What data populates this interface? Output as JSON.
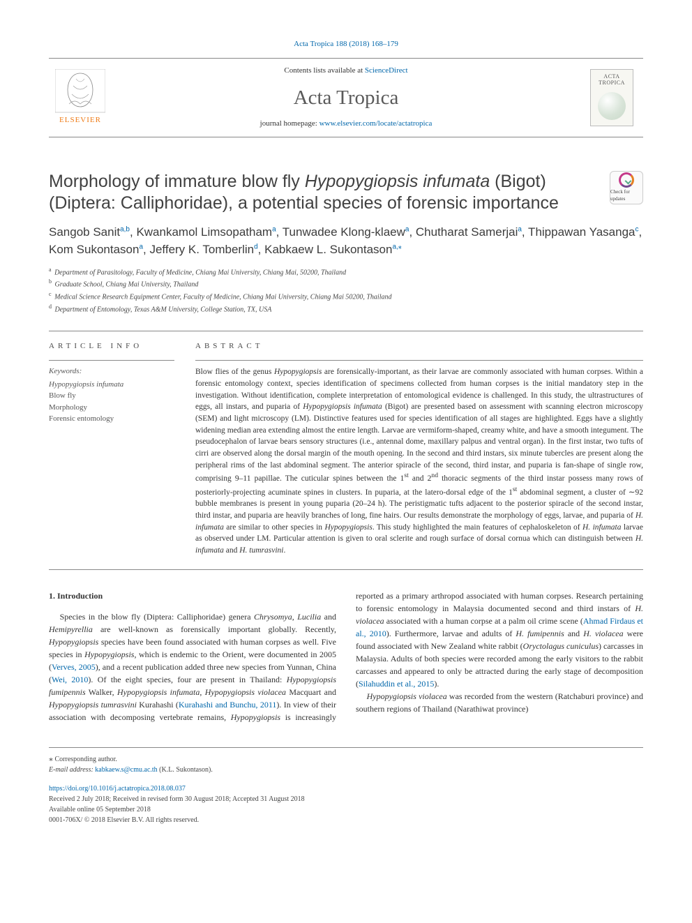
{
  "topbar": {
    "journal_ref": "Acta Tropica 188 (2018) 168–179"
  },
  "masthead": {
    "contents_prefix": "Contents lists available at ",
    "contents_link": "ScienceDirect",
    "journal_name": "Acta Tropica",
    "homepage_prefix": "journal homepage: ",
    "homepage_link": "www.elsevier.com/locate/actatropica",
    "cover_title": "ACTA TROPICA"
  },
  "title": {
    "pre": "Morphology of immature blow fly ",
    "italic": "Hypopygiopsis infumata",
    "post": " (Bigot) (Diptera: Calliphoridae), a potential species of forensic importance"
  },
  "check_updates_label": "Check for updates",
  "authors": [
    {
      "name": "Sangob Sanit",
      "aff": "a,b"
    },
    {
      "name": "Kwankamol Limsopatham",
      "aff": "a"
    },
    {
      "name": "Tunwadee Klong-klaew",
      "aff": "a"
    },
    {
      "name": "Chutharat Samerjai",
      "aff": "a"
    },
    {
      "name": "Thippawan Yasanga",
      "aff": "c"
    },
    {
      "name": "Kom Sukontason",
      "aff": "a"
    },
    {
      "name": "Jeffery K. Tomberlin",
      "aff": "d"
    },
    {
      "name": "Kabkaew L. Sukontason",
      "aff": "a,",
      "corr": true
    }
  ],
  "affiliations": [
    {
      "key": "a",
      "text": "Department of Parasitology, Faculty of Medicine, Chiang Mai University, Chiang Mai, 50200, Thailand"
    },
    {
      "key": "b",
      "text": "Graduate School, Chiang Mai University, Thailand"
    },
    {
      "key": "c",
      "text": "Medical Science Research Equipment Center, Faculty of Medicine, Chiang Mai University, Chiang Mai 50200, Thailand"
    },
    {
      "key": "d",
      "text": "Department of Entomology, Texas A&M University, College Station, TX, USA"
    }
  ],
  "article_info_label": "ARTICLE INFO",
  "abstract_label": "ABSTRACT",
  "keywords_heading": "Keywords:",
  "keywords": [
    "Hypopygiopsis infumata",
    "Blow fly",
    "Morphology",
    "Forensic entomology"
  ],
  "abstract_html": "Blow flies of the genus <span class=\"italic\">Hypopygiopsis</span> are forensically-important, as their larvae are commonly associated with human corpses. Within a forensic entomology context, species identification of specimens collected from human corpses is the initial mandatory step in the investigation. Without identification, complete interpretation of entomological evidence is challenged. In this study, the ultrastructures of eggs, all instars, and puparia of <span class=\"italic\">Hypopygiopsis infumata</span> (Bigot) are presented based on assessment with scanning electron microscopy (SEM) and light microscopy (LM). Distinctive features used for species identification of all stages are highlighted. Eggs have a slightly widening median area extending almost the entire length. Larvae are vermiform-shaped, creamy white, and have a smooth integument. The pseudocephalon of larvae bears sensory structures (i.e., antennal dome, maxillary palpus and ventral organ). In the first instar, two tufts of cirri are observed along the dorsal margin of the mouth opening. In the second and third instars, six minute tubercles are present along the peripheral rims of the last abdominal segment. The anterior spiracle of the second, third instar, and puparia is fan-shape of single row, comprising 9–11 papillae. The cuticular spines between the 1<sup>st</sup> and 2<sup>nd</sup> thoracic segments of the third instar possess many rows of posteriorly-projecting acuminate spines in clusters. In puparia, at the latero-dorsal edge of the 1<sup>st</sup> abdominal segment, a cluster of ∼92 bubble membranes is present in young puparia (20–24 h). The peristigmatic tufts adjacent to the posterior spiracle of the second instar, third instar, and puparia are heavily branches of long, fine hairs. Our results demonstrate the morphology of eggs, larvae, and puparia of <span class=\"italic\">H. infumata</span> are similar to other species in <span class=\"italic\">Hypopygiopsis</span>. This study highlighted the main features of cephaloskeleton of <span class=\"italic\">H. infumata</span> larvae as observed under LM. Particular attention is given to oral sclerite and rough surface of dorsal cornua which can distinguish between <span class=\"italic\">H. infumata</span> and <span class=\"italic\">H. tumrasvini</span>.",
  "intro_heading": "1. Introduction",
  "intro_html_p1": "Species in the blow fly (Diptera: Calliphoridae) genera <span class=\"italic\">Chrysomya</span>, <span class=\"italic\">Lucilia</span> and <span class=\"italic\">Hemipyrellia</span> are well-known as forensically important globally. Recently, <span class=\"italic\">Hypopygiopsis</span> species have been found associated with human corpses as well. Five species in <span class=\"italic\">Hypopygiopsis</span>, which is endemic to the Orient, were documented in 2005 (<a href=\"#\" data-name=\"ref-link\" data-interactable=\"true\">Verves, 2005</a>), and a recent publication added three new species from Yunnan, China (<a href=\"#\" data-name=\"ref-link\" data-interactable=\"true\">Wei, 2010</a>). Of the eight species, four are present in Thailand: <span class=\"italic\">Hypopygiopsis fumipennis</span> Walker, <span class=\"italic\">Hypopygiopsis infumata</span>, <span class=\"italic\">Hypopygiopsis violacea</span> Macquart and <span class=\"italic\">Hypopygiopsis tumrasvini</span> Kurahashi (<a href=\"#\" data-name=\"ref-link\" data-interactable=\"true\">Kurahashi and Bunchu, 2011</a>). In view of their association with decomposing vertebrate remains, <span class=\"italic\">Hypopygiopsis</span> is increasingly reported as a primary arthropod associated with human corpses. Research pertaining to forensic entomology in Malaysia documented second and third instars of <span class=\"italic\">H. violacea</span> associated with a human corpse at a palm oil crime scene (<a href=\"#\" data-name=\"ref-link\" data-interactable=\"true\">Ahmad Firdaus et al., 2010</a>). Furthermore, larvae and adults of <span class=\"italic\">H. fumipennis</span> and <span class=\"italic\">H. violacea</span> were found associated with New Zealand white rabbit (<span class=\"italic\">Oryctolagus cuniculus</span>) carcasses in Malaysia. Adults of both species were recorded among the early visitors to the rabbit carcasses and appeared to only be attracted during the early stage of decomposition (<a href=\"#\" data-name=\"ref-link\" data-interactable=\"true\">Silahuddin et al., 2015</a>).",
  "intro_html_p2": "<span class=\"italic\">Hypopygiopsis violacea</span> was recorded from the western (Ratchaburi province) and southern regions of Thailand (Narathiwat province)",
  "footer": {
    "corresponding": "Corresponding author.",
    "email_label": "E-mail address: ",
    "email": "kabkaew.s@cmu.ac.th",
    "email_name": " (K.L. Sukontason).",
    "doi": "https://doi.org/10.1016/j.actatropica.2018.08.037",
    "received": "Received 2 July 2018; Received in revised form 30 August 2018; Accepted 31 August 2018",
    "available": "Available online 05 September 2018",
    "issn": "0001-706X/ © 2018 Elsevier B.V. All rights reserved."
  },
  "colors": {
    "link": "#0066aa",
    "body": "#333333",
    "heading": "#414141",
    "rule": "#888888"
  }
}
